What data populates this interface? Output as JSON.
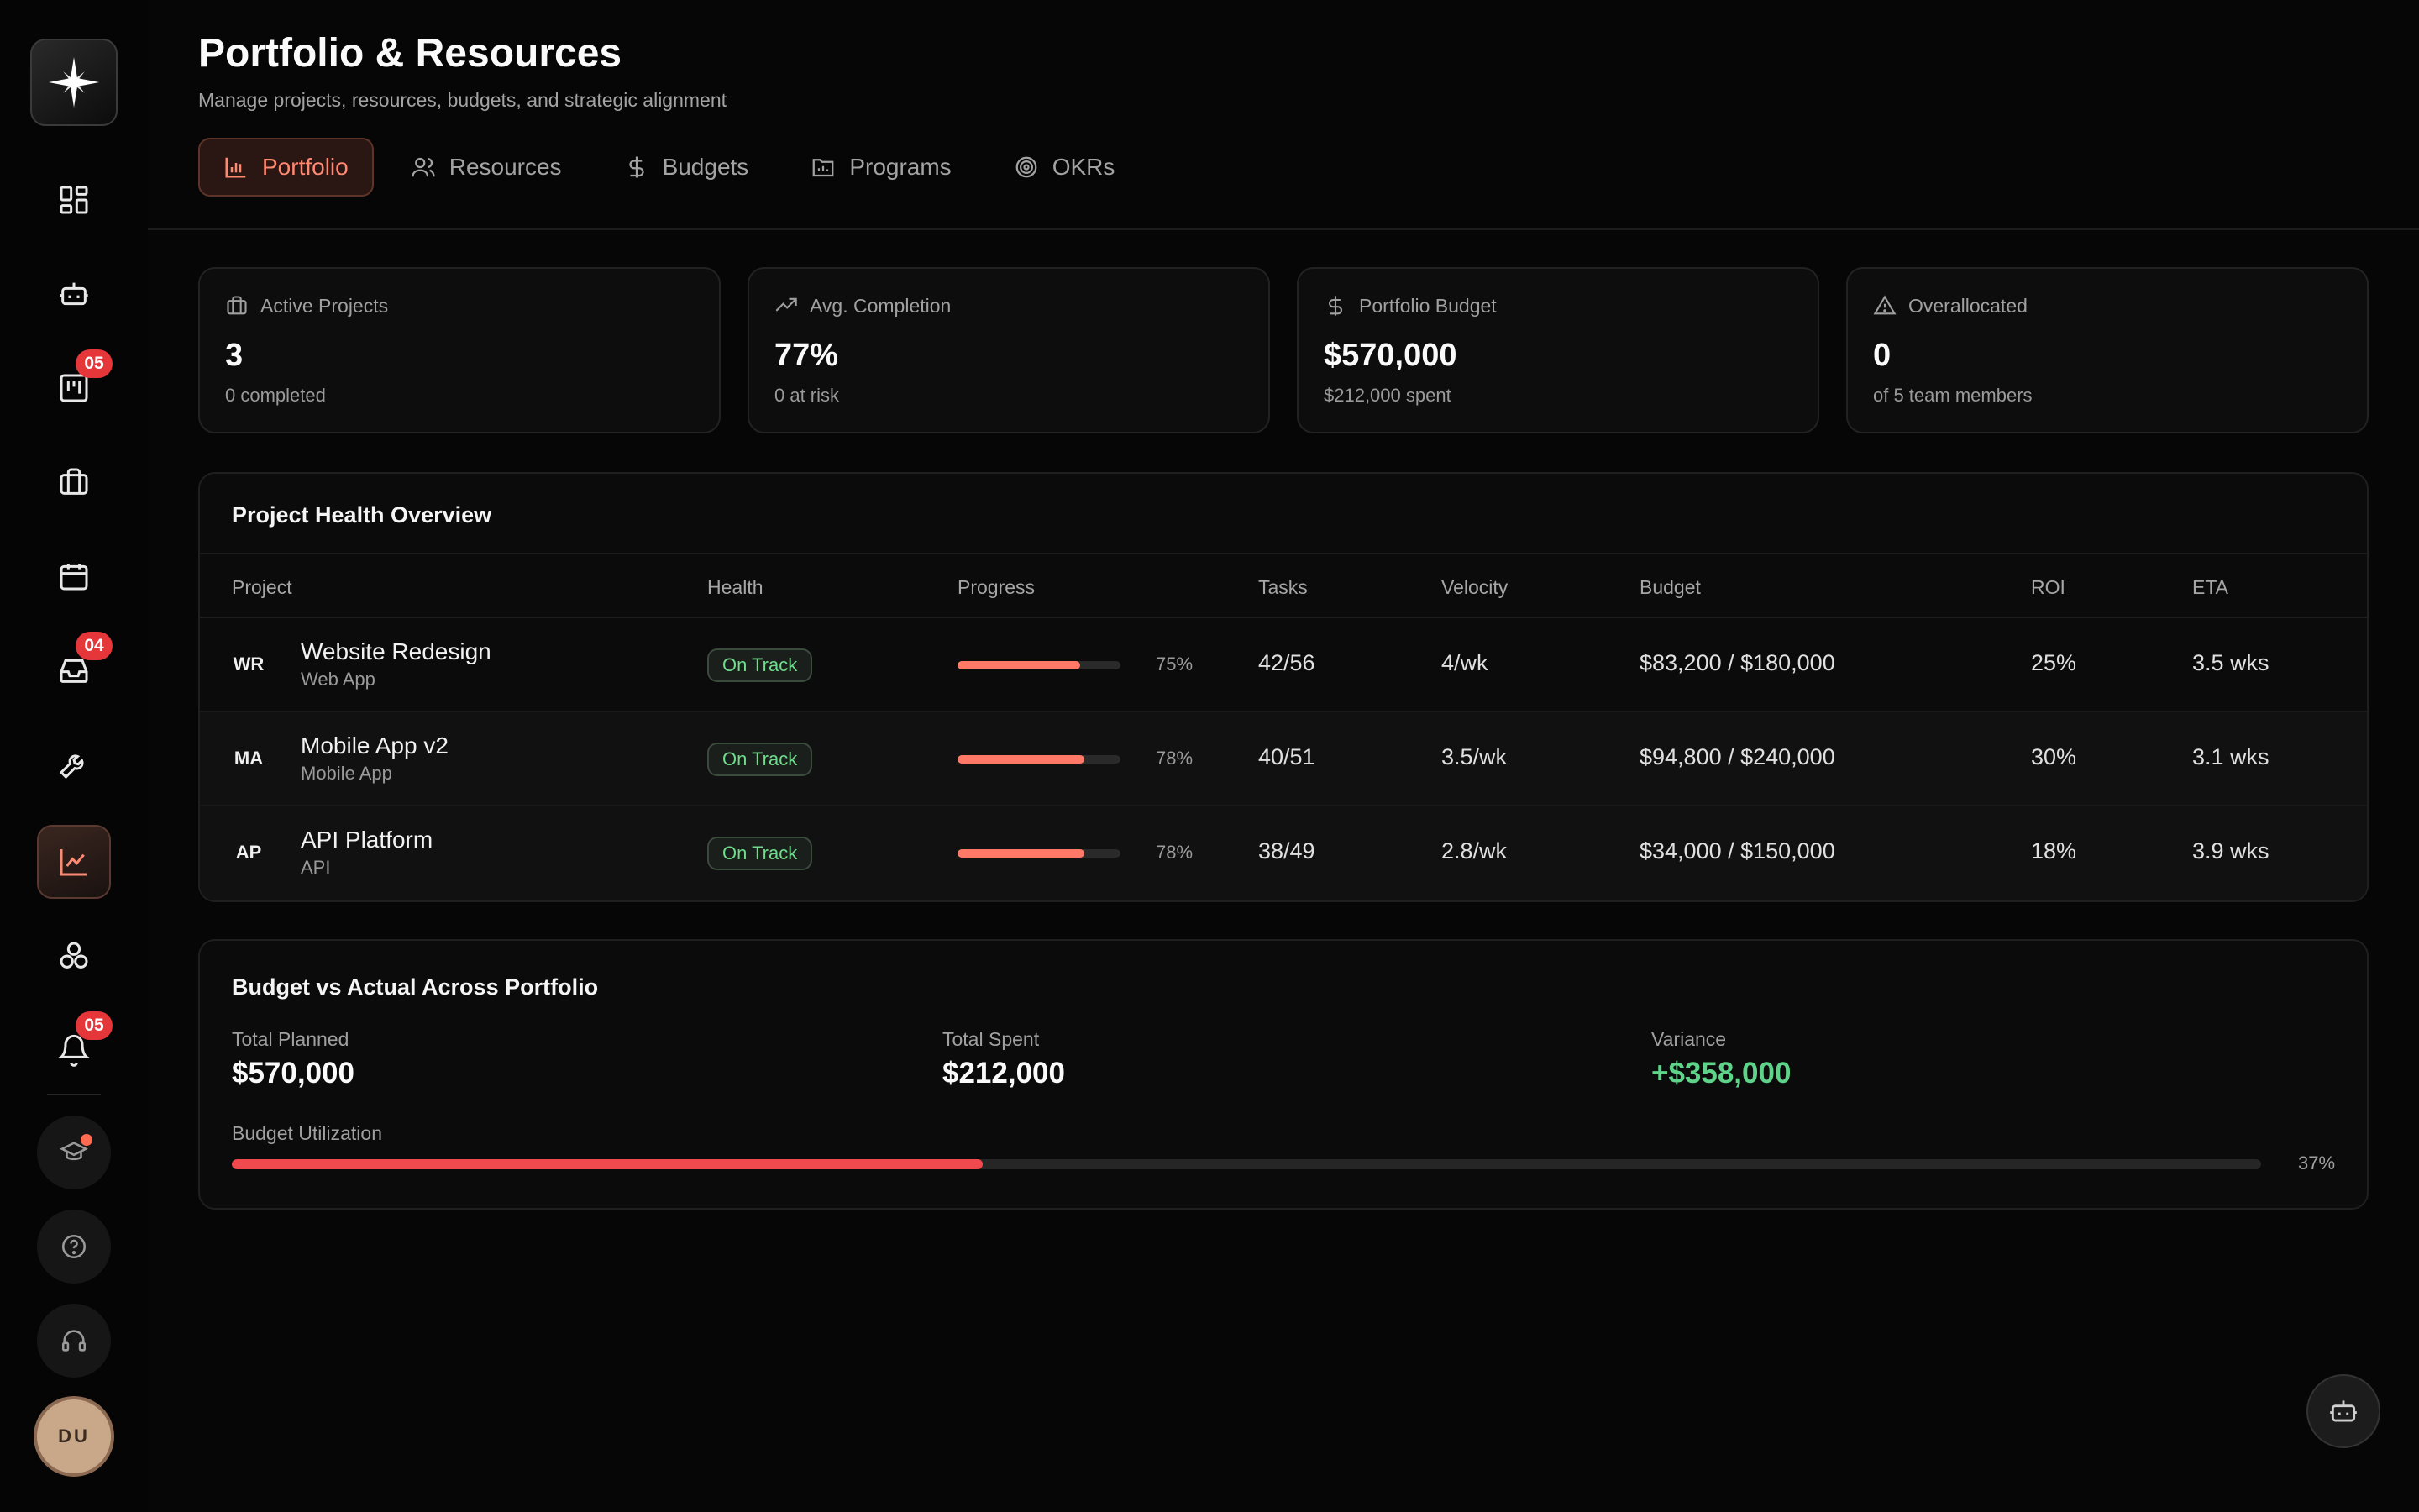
{
  "sidebar": {
    "badges": {
      "kanban": "05",
      "inbox": "04",
      "notifications": "05"
    },
    "avatar_initials": "DU"
  },
  "header": {
    "title": "Portfolio & Resources",
    "subtitle": "Manage projects, resources, budgets, and strategic alignment"
  },
  "tabs": [
    {
      "label": "Portfolio",
      "icon": "bar-chart-icon",
      "active": true
    },
    {
      "label": "Resources",
      "icon": "users-icon",
      "active": false
    },
    {
      "label": "Budgets",
      "icon": "dollar-icon",
      "active": false
    },
    {
      "label": "Programs",
      "icon": "folder-chart-icon",
      "active": false
    },
    {
      "label": "OKRs",
      "icon": "target-icon",
      "active": false
    }
  ],
  "stats": [
    {
      "label": "Active Projects",
      "icon": "briefcase-icon",
      "value": "3",
      "sub": "0 completed"
    },
    {
      "label": "Avg. Completion",
      "icon": "trending-up-icon",
      "value": "77%",
      "sub": "0 at risk"
    },
    {
      "label": "Portfolio Budget",
      "icon": "dollar-icon",
      "value": "$570,000",
      "sub": "$212,000 spent"
    },
    {
      "label": "Overallocated",
      "icon": "warning-icon",
      "value": "0",
      "sub": "of 5 team members"
    }
  ],
  "health_overview": {
    "title": "Project Health Overview",
    "columns": [
      "Project",
      "Health",
      "Progress",
      "Tasks",
      "Velocity",
      "Budget",
      "ROI",
      "ETA"
    ],
    "rows": [
      {
        "abbr": "WR",
        "name": "Website Redesign",
        "type": "Web App",
        "health": "On Track",
        "progress": 0.75,
        "progress_label": "75%",
        "tasks": "42/56",
        "velocity": "4/wk",
        "budget": "$83,200 / $180,000",
        "roi": "25%",
        "eta": "3.5 wks"
      },
      {
        "abbr": "MA",
        "name": "Mobile App v2",
        "type": "Mobile App",
        "health": "On Track",
        "progress": 0.78,
        "progress_label": "78%",
        "tasks": "40/51",
        "velocity": "3.5/wk",
        "budget": "$94,800 / $240,000",
        "roi": "30%",
        "eta": "3.1 wks"
      },
      {
        "abbr": "AP",
        "name": "API Platform",
        "type": "API",
        "health": "On Track",
        "progress": 0.78,
        "progress_label": "78%",
        "tasks": "38/49",
        "velocity": "2.8/wk",
        "budget": "$34,000 / $150,000",
        "roi": "18%",
        "eta": "3.9 wks"
      }
    ]
  },
  "budget_panel": {
    "title": "Budget vs Actual Across Portfolio",
    "total_planned_label": "Total Planned",
    "total_planned": "$570,000",
    "total_spent_label": "Total Spent",
    "total_spent": "$212,000",
    "variance_label": "Variance",
    "variance": "+$358,000",
    "utilization_label": "Budget Utilization",
    "utilization": 0.37,
    "utilization_text": "37%"
  },
  "colors": {
    "accent": "#ff8a73",
    "on_track": "#6fdc8c",
    "variance": "#5fd38a",
    "badge": "#e5363a",
    "utilization_fill": "#f04a4e"
  }
}
